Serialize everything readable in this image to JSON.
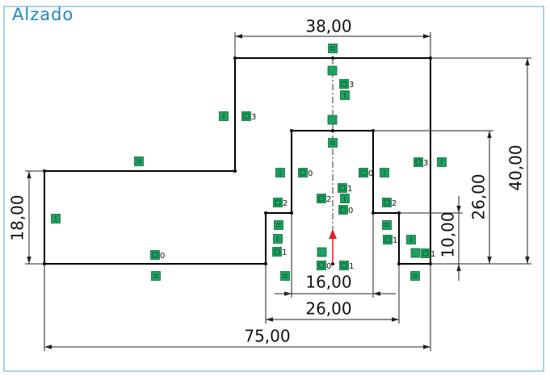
{
  "view": {
    "title": "Alzado"
  },
  "dimensions": [
    "38,00",
    "16,00",
    "26,00",
    "75,00",
    "18,00",
    "40,00",
    "26,00",
    "10,00"
  ],
  "relations": [
    "3",
    "3",
    "0",
    "0",
    "3",
    "1",
    "2",
    "2",
    "0",
    "2",
    "1",
    "1",
    "0",
    "1",
    "0",
    "1"
  ]
}
